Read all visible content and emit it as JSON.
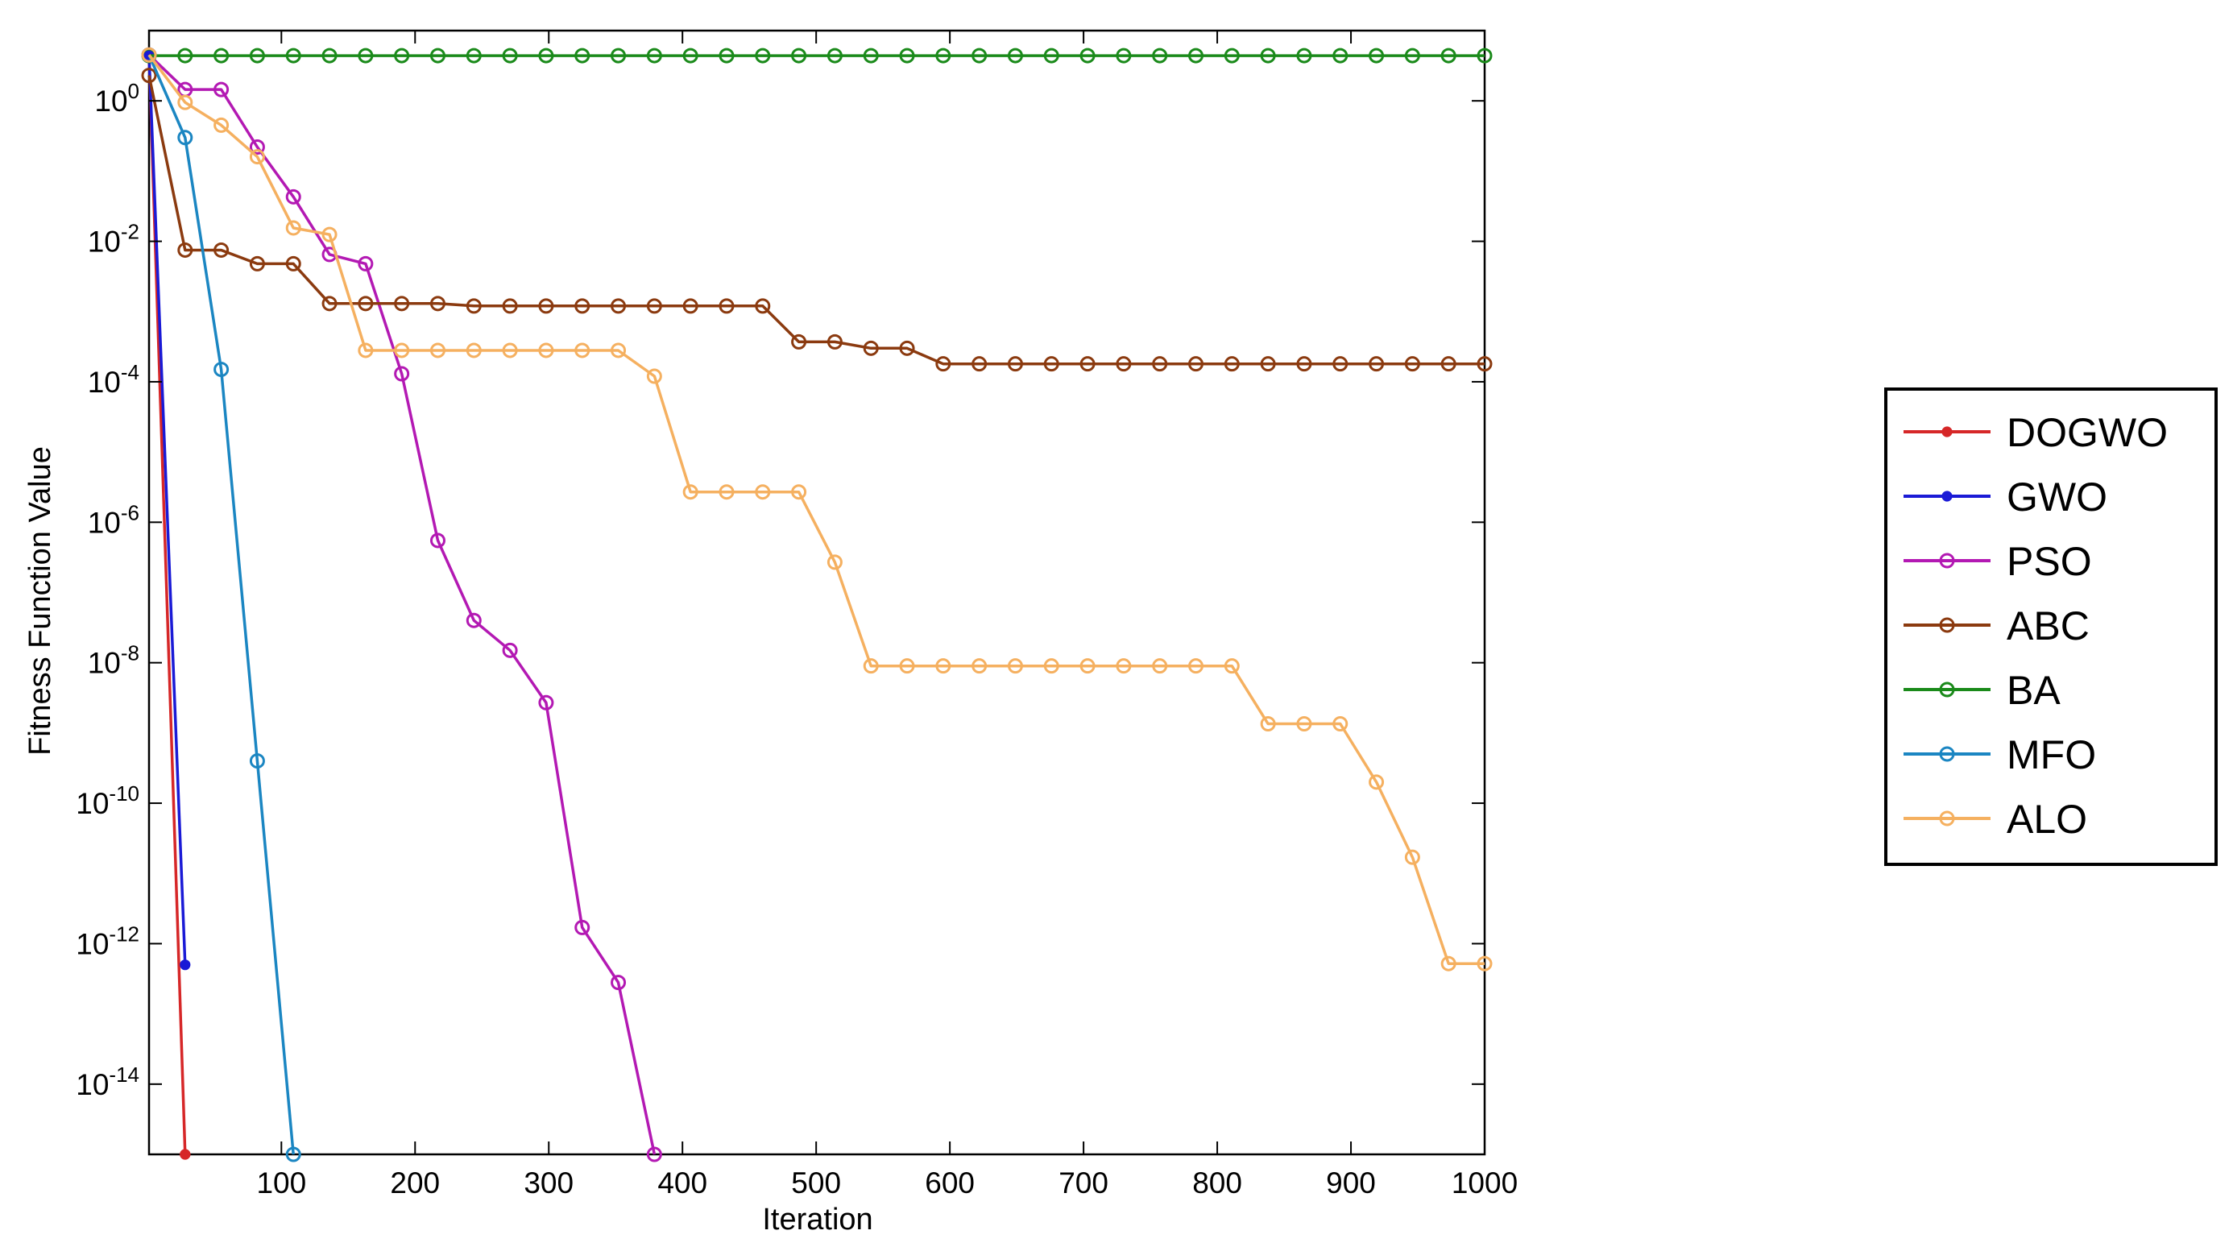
{
  "chart_data": {
    "type": "line",
    "title": "",
    "xlabel": "Iteration",
    "ylabel": "Fitness Function Value",
    "xlim": [
      1,
      1000
    ],
    "ylim": [
      1e-15,
      10
    ],
    "yscale": "log",
    "x_ticks": [
      100,
      200,
      300,
      400,
      500,
      600,
      700,
      800,
      900,
      1000
    ],
    "y_tick_exponents": [
      0,
      -2,
      -4,
      -6,
      -8,
      -10,
      -12,
      -14
    ],
    "legend_position": "right",
    "grid": false,
    "series": [
      {
        "name": "DOGWO",
        "color": "#d62728",
        "marker": "star",
        "x": [
          1,
          28,
          28
        ],
        "y": [
          4.5,
          1e-15,
          1e-15
        ]
      },
      {
        "name": "GWO",
        "color": "#1a1ad6",
        "marker": "star",
        "x": [
          1,
          28
        ],
        "y": [
          4.5,
          5e-13
        ]
      },
      {
        "name": "PSO",
        "color": "#b319b3",
        "marker": "circle",
        "x": [
          1,
          28,
          55,
          82,
          109,
          136,
          163,
          190,
          217,
          244,
          271,
          298,
          325,
          352,
          379
        ],
        "y": [
          4.5,
          1.45,
          1.45,
          0.22,
          0.043,
          0.0065,
          0.0048,
          0.00013,
          5.5e-07,
          4e-08,
          1.5e-08,
          2.7e-09,
          1.7e-12,
          2.8e-13,
          1e-15
        ]
      },
      {
        "name": "ABC",
        "color": "#8b3a0f",
        "marker": "circle",
        "x": [
          1,
          28,
          55,
          82,
          109,
          136,
          163,
          190,
          217,
          244,
          271,
          298,
          325,
          352,
          379,
          406,
          433,
          460,
          487,
          514,
          541,
          568,
          595,
          622,
          649,
          676,
          703,
          730,
          757,
          784,
          811,
          838,
          865,
          892,
          919,
          946,
          973,
          1000
        ],
        "y": [
          2.3,
          0.0075,
          0.0075,
          0.0048,
          0.0048,
          0.0013,
          0.0013,
          0.0013,
          0.0013,
          0.0012,
          0.0012,
          0.0012,
          0.0012,
          0.0012,
          0.0012,
          0.0012,
          0.0012,
          0.0012,
          0.00037,
          0.00037,
          0.0003,
          0.0003,
          0.00018,
          0.00018,
          0.00018,
          0.00018,
          0.00018,
          0.00018,
          0.00018,
          0.00018,
          0.00018,
          0.00018,
          0.00018,
          0.00018,
          0.00018,
          0.00018,
          0.00018,
          0.00018
        ]
      },
      {
        "name": "BA",
        "color": "#1a8a1a",
        "marker": "circle",
        "x": [
          1,
          28,
          55,
          82,
          109,
          136,
          163,
          190,
          217,
          244,
          271,
          298,
          325,
          352,
          379,
          406,
          433,
          460,
          487,
          514,
          541,
          568,
          595,
          622,
          649,
          676,
          703,
          730,
          757,
          784,
          811,
          838,
          865,
          892,
          919,
          946,
          973,
          1000
        ],
        "y": [
          4.4,
          4.4,
          4.4,
          4.4,
          4.4,
          4.4,
          4.4,
          4.4,
          4.4,
          4.4,
          4.4,
          4.4,
          4.4,
          4.4,
          4.4,
          4.4,
          4.4,
          4.4,
          4.4,
          4.4,
          4.4,
          4.4,
          4.4,
          4.4,
          4.4,
          4.4,
          4.4,
          4.4,
          4.4,
          4.4,
          4.4,
          4.4,
          4.4,
          4.4,
          4.4,
          4.4,
          4.4,
          4.4
        ]
      },
      {
        "name": "MFO",
        "color": "#1b86c2",
        "marker": "circle",
        "x": [
          1,
          28,
          55,
          82,
          109
        ],
        "y": [
          4.5,
          0.3,
          0.00015,
          4e-10,
          1e-15
        ]
      },
      {
        "name": "ALO",
        "color": "#f5b060",
        "marker": "circle",
        "x": [
          1,
          28,
          55,
          82,
          109,
          136,
          163,
          190,
          217,
          244,
          271,
          298,
          325,
          352,
          379,
          406,
          433,
          460,
          487,
          514,
          541,
          568,
          595,
          622,
          649,
          676,
          703,
          730,
          757,
          784,
          811,
          838,
          865,
          892,
          919,
          946,
          973,
          1000
        ],
        "y": [
          4.5,
          0.95,
          0.45,
          0.16,
          0.0155,
          0.0125,
          0.00028,
          0.00028,
          0.00028,
          0.00028,
          0.00028,
          0.00028,
          0.00028,
          0.00028,
          0.00012,
          2.7e-06,
          2.7e-06,
          2.7e-06,
          2.7e-06,
          2.7e-07,
          9e-09,
          9e-09,
          9e-09,
          9e-09,
          9e-09,
          9e-09,
          9e-09,
          9e-09,
          9e-09,
          9e-09,
          9e-09,
          1.35e-09,
          1.35e-09,
          1.35e-09,
          2e-10,
          1.7e-11,
          5.2e-13,
          5.2e-13
        ]
      }
    ]
  }
}
